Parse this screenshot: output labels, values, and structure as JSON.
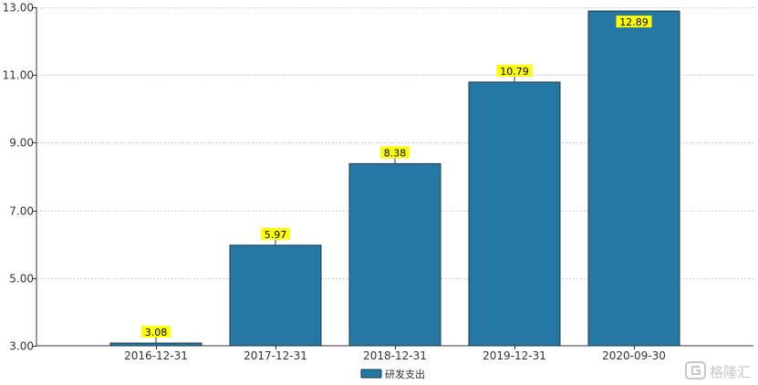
{
  "chart_data": {
    "type": "bar",
    "categories": [
      "2016-12-31",
      "2017-12-31",
      "2018-12-31",
      "2019-12-31",
      "2020-09-30"
    ],
    "series": [
      {
        "name": "研发支出",
        "values": [
          3.08,
          5.97,
          8.38,
          10.79,
          12.89
        ]
      }
    ],
    "data_labels": [
      "3.08",
      "5.97",
      "8.38",
      "10.79",
      "12.89"
    ],
    "y_ticks": [
      "3.00",
      "5.00",
      "7.00",
      "9.00",
      "11.00",
      "13.00"
    ],
    "ylim": [
      3,
      13
    ],
    "y_tick_values": [
      3,
      5,
      7,
      9,
      11,
      13
    ],
    "grid": true,
    "legend_position": "bottom-center",
    "title": "",
    "xlabel": "",
    "ylabel": ""
  },
  "colors": {
    "bar_fill": "#2478a3",
    "bar_stroke": "#1d3a4a",
    "label_background": "#ffff00",
    "grid": "#cccccc",
    "axis": "#333333"
  },
  "watermark": {
    "icon": "gelonghui-logo-icon",
    "text": "格隆汇"
  }
}
